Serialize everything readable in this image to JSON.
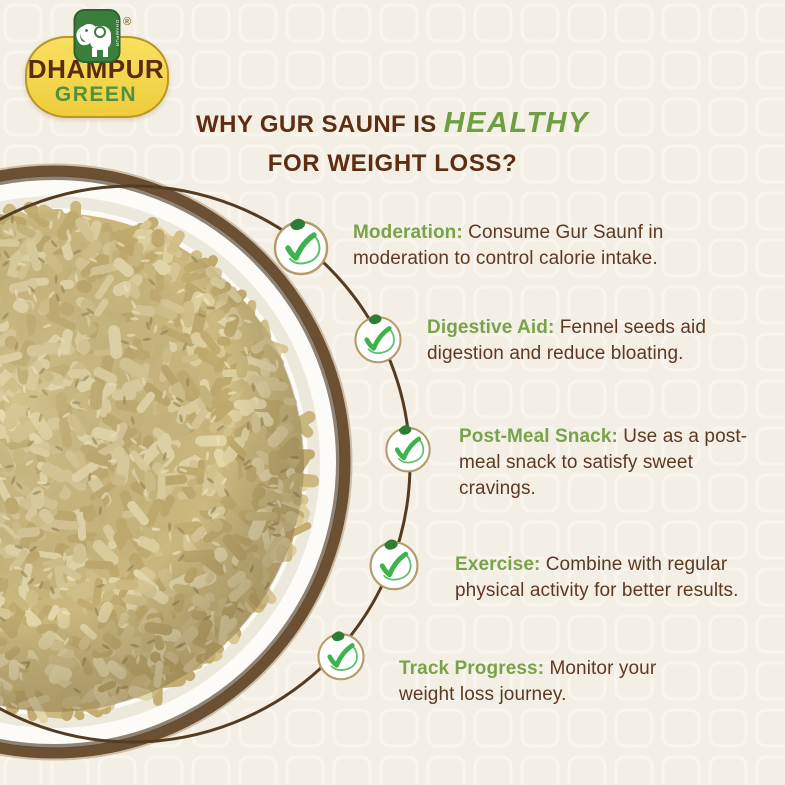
{
  "brand": {
    "name_top": "DHAMPUR",
    "name_bottom": "GREEN",
    "registered_mark": "®",
    "elephant_label": "DHAMPUR"
  },
  "title": {
    "line1_prefix": "WHY GUR SAUNF IS",
    "line1_highlight": "HEALTHY",
    "line2": "FOR WEIGHT LOSS?"
  },
  "items": [
    {
      "keyword": "Moderation:",
      "lines": [
        "Consume Gur Saunf in",
        "moderation to control calorie intake."
      ]
    },
    {
      "keyword": "Digestive Aid:",
      "lines": [
        "Fennel seeds aid",
        "digestion and reduce bloating."
      ]
    },
    {
      "keyword": "Post-Meal Snack:",
      "lines": [
        "Use as a post-",
        "meal snack to satisfy sweet",
        "cravings."
      ]
    },
    {
      "keyword": "Exercise:",
      "lines": [
        "Combine with regular",
        "physical activity for better results."
      ]
    },
    {
      "keyword": "Track Progress:",
      "lines": [
        "Monitor your",
        "weight loss journey."
      ]
    }
  ],
  "icons": {
    "check": "check-in-circle-with-leaf",
    "subject": "bowl-of-gur-saunf",
    "brand_mark": "elephant-icon"
  },
  "colors": {
    "background": "#f4efe5",
    "title_brown": "#5e2d12",
    "highlight_green": "#6f9e43",
    "keyword_green": "#7aa24a",
    "body_brown": "#5d3922",
    "check_green": "#3cb34c",
    "icon_ring_tan": "#b49b6c",
    "connector_brown": "#533c22",
    "badge_yellow": "#f6d84d",
    "badge_border": "#bb9526",
    "brand_brown": "#5b2b10",
    "brand_green": "#4f9140",
    "elephant_green": "#3b7d3b",
    "bowl_rim": "#6b5034",
    "grain_tan": "#ccb87e"
  }
}
